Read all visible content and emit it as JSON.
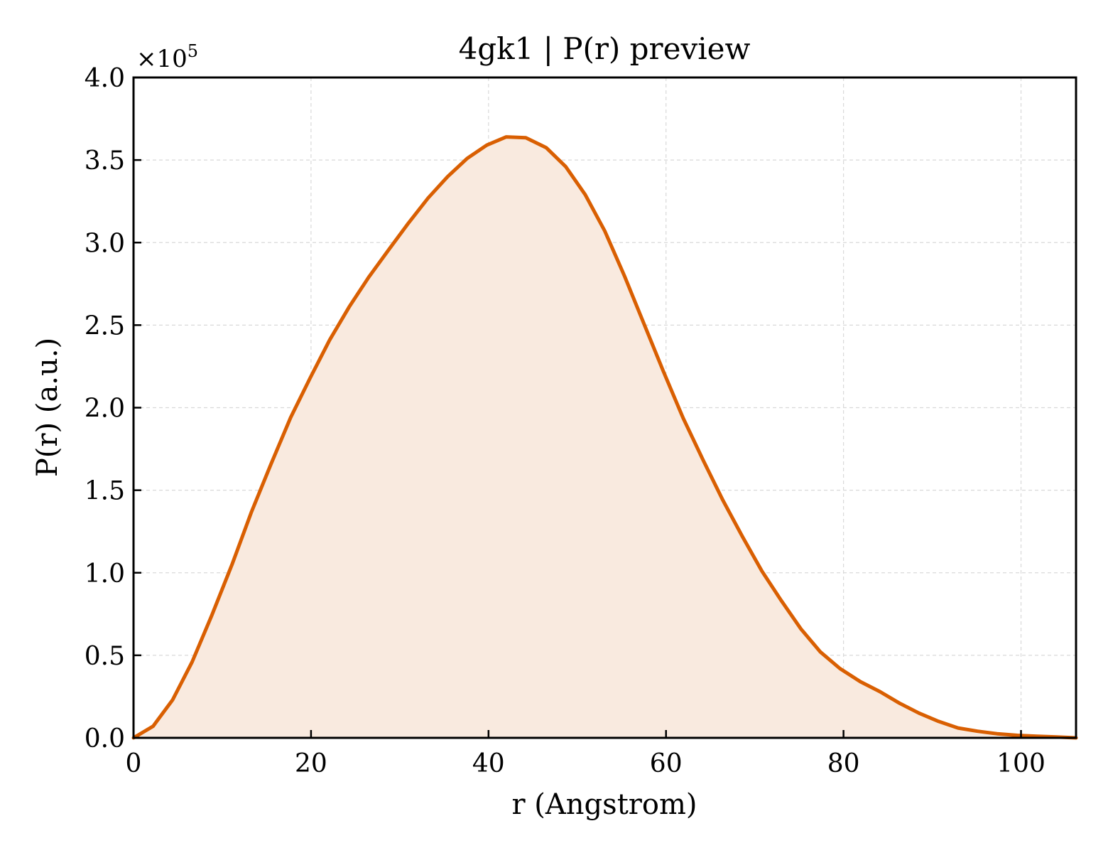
{
  "chart_data": {
    "type": "area",
    "title": "4gk1 | P(r) preview",
    "xlabel": "r (Angstrom)",
    "ylabel": "P(r) (a.u.)",
    "y_scale_label": {
      "prefix": "×10",
      "exponent": "5"
    },
    "xlim": [
      0,
      106.2
    ],
    "ylim": [
      0,
      4.0
    ],
    "y_multiplier": 100000,
    "x_ticks": [
      0,
      20,
      40,
      60,
      80,
      100
    ],
    "x_tick_labels": [
      "0",
      "20",
      "40",
      "60",
      "80",
      "100"
    ],
    "y_ticks": [
      0,
      0.5,
      1.0,
      1.5,
      2.0,
      2.5,
      3.0,
      3.5,
      4.0
    ],
    "y_tick_labels": [
      "0.0",
      "0.5",
      "1.0",
      "1.5",
      "2.0",
      "2.5",
      "3.0",
      "3.5",
      "4.0"
    ],
    "grid": true,
    "line_color": "#d95f02",
    "fill_color": "#f9eadf",
    "series": [
      {
        "x": [
          0,
          2.2,
          4.4,
          6.6,
          8.8,
          11.1,
          13.3,
          15.5,
          17.7,
          19.9,
          22.1,
          24.3,
          26.5,
          28.8,
          31.0,
          33.2,
          35.4,
          37.6,
          39.8,
          42.0,
          44.2,
          46.5,
          48.7,
          50.9,
          53.1,
          55.3,
          57.5,
          59.7,
          61.9,
          64.2,
          66.4,
          68.6,
          70.8,
          73.0,
          75.2,
          77.4,
          79.6,
          81.9,
          84.1,
          86.3,
          88.5,
          90.7,
          92.9,
          95.1,
          97.3,
          99.6,
          101.8,
          104.0,
          106.2
        ],
        "y": [
          0.0,
          0.07,
          0.23,
          0.46,
          0.74,
          1.05,
          1.37,
          1.66,
          1.94,
          2.18,
          2.41,
          2.61,
          2.79,
          2.96,
          3.12,
          3.27,
          3.4,
          3.51,
          3.59,
          3.64,
          3.635,
          3.575,
          3.46,
          3.29,
          3.07,
          2.8,
          2.51,
          2.22,
          1.94,
          1.68,
          1.44,
          1.22,
          1.01,
          0.83,
          0.66,
          0.52,
          0.42,
          0.34,
          0.28,
          0.21,
          0.15,
          0.1,
          0.06,
          0.04,
          0.025,
          0.015,
          0.01,
          0.005,
          0.0
        ]
      }
    ]
  }
}
